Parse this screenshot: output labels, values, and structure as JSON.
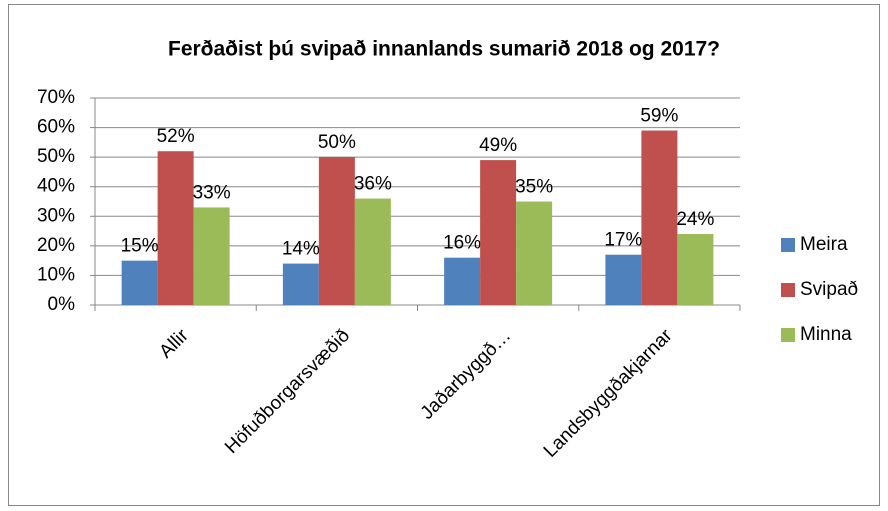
{
  "chart_data": {
    "type": "bar",
    "title": "Ferðaðist þú svipað innanlands sumarið 2018 og 2017?",
    "categories": [
      "Allir",
      "Höfuðborgarsvæðið",
      "Jaðarbyggð…",
      "Landsbyggðakjarnar"
    ],
    "series": [
      {
        "name": "Meira",
        "color": "#4f81bd",
        "values": [
          15,
          14,
          16,
          17
        ],
        "value_labels": [
          "15%",
          "14%",
          "16%",
          "17%"
        ]
      },
      {
        "name": "Svipað",
        "color": "#c0504d",
        "values": [
          52,
          50,
          49,
          59
        ],
        "value_labels": [
          "52%",
          "50%",
          "49%",
          "59%"
        ]
      },
      {
        "name": "Minna",
        "color": "#9bbb59",
        "values": [
          33,
          36,
          35,
          24
        ],
        "value_labels": [
          "33%",
          "36%",
          "35%",
          "24%"
        ]
      }
    ],
    "ylim": [
      0,
      70
    ],
    "yticks": [
      {
        "value": 0,
        "label": "0%"
      },
      {
        "value": 10,
        "label": "10%"
      },
      {
        "value": 20,
        "label": "20%"
      },
      {
        "value": 30,
        "label": "30%"
      },
      {
        "value": 40,
        "label": "40%"
      },
      {
        "value": 50,
        "label": "50%"
      },
      {
        "value": 60,
        "label": "60%"
      },
      {
        "value": 70,
        "label": "70%"
      }
    ],
    "grid": true,
    "legend": "right"
  }
}
